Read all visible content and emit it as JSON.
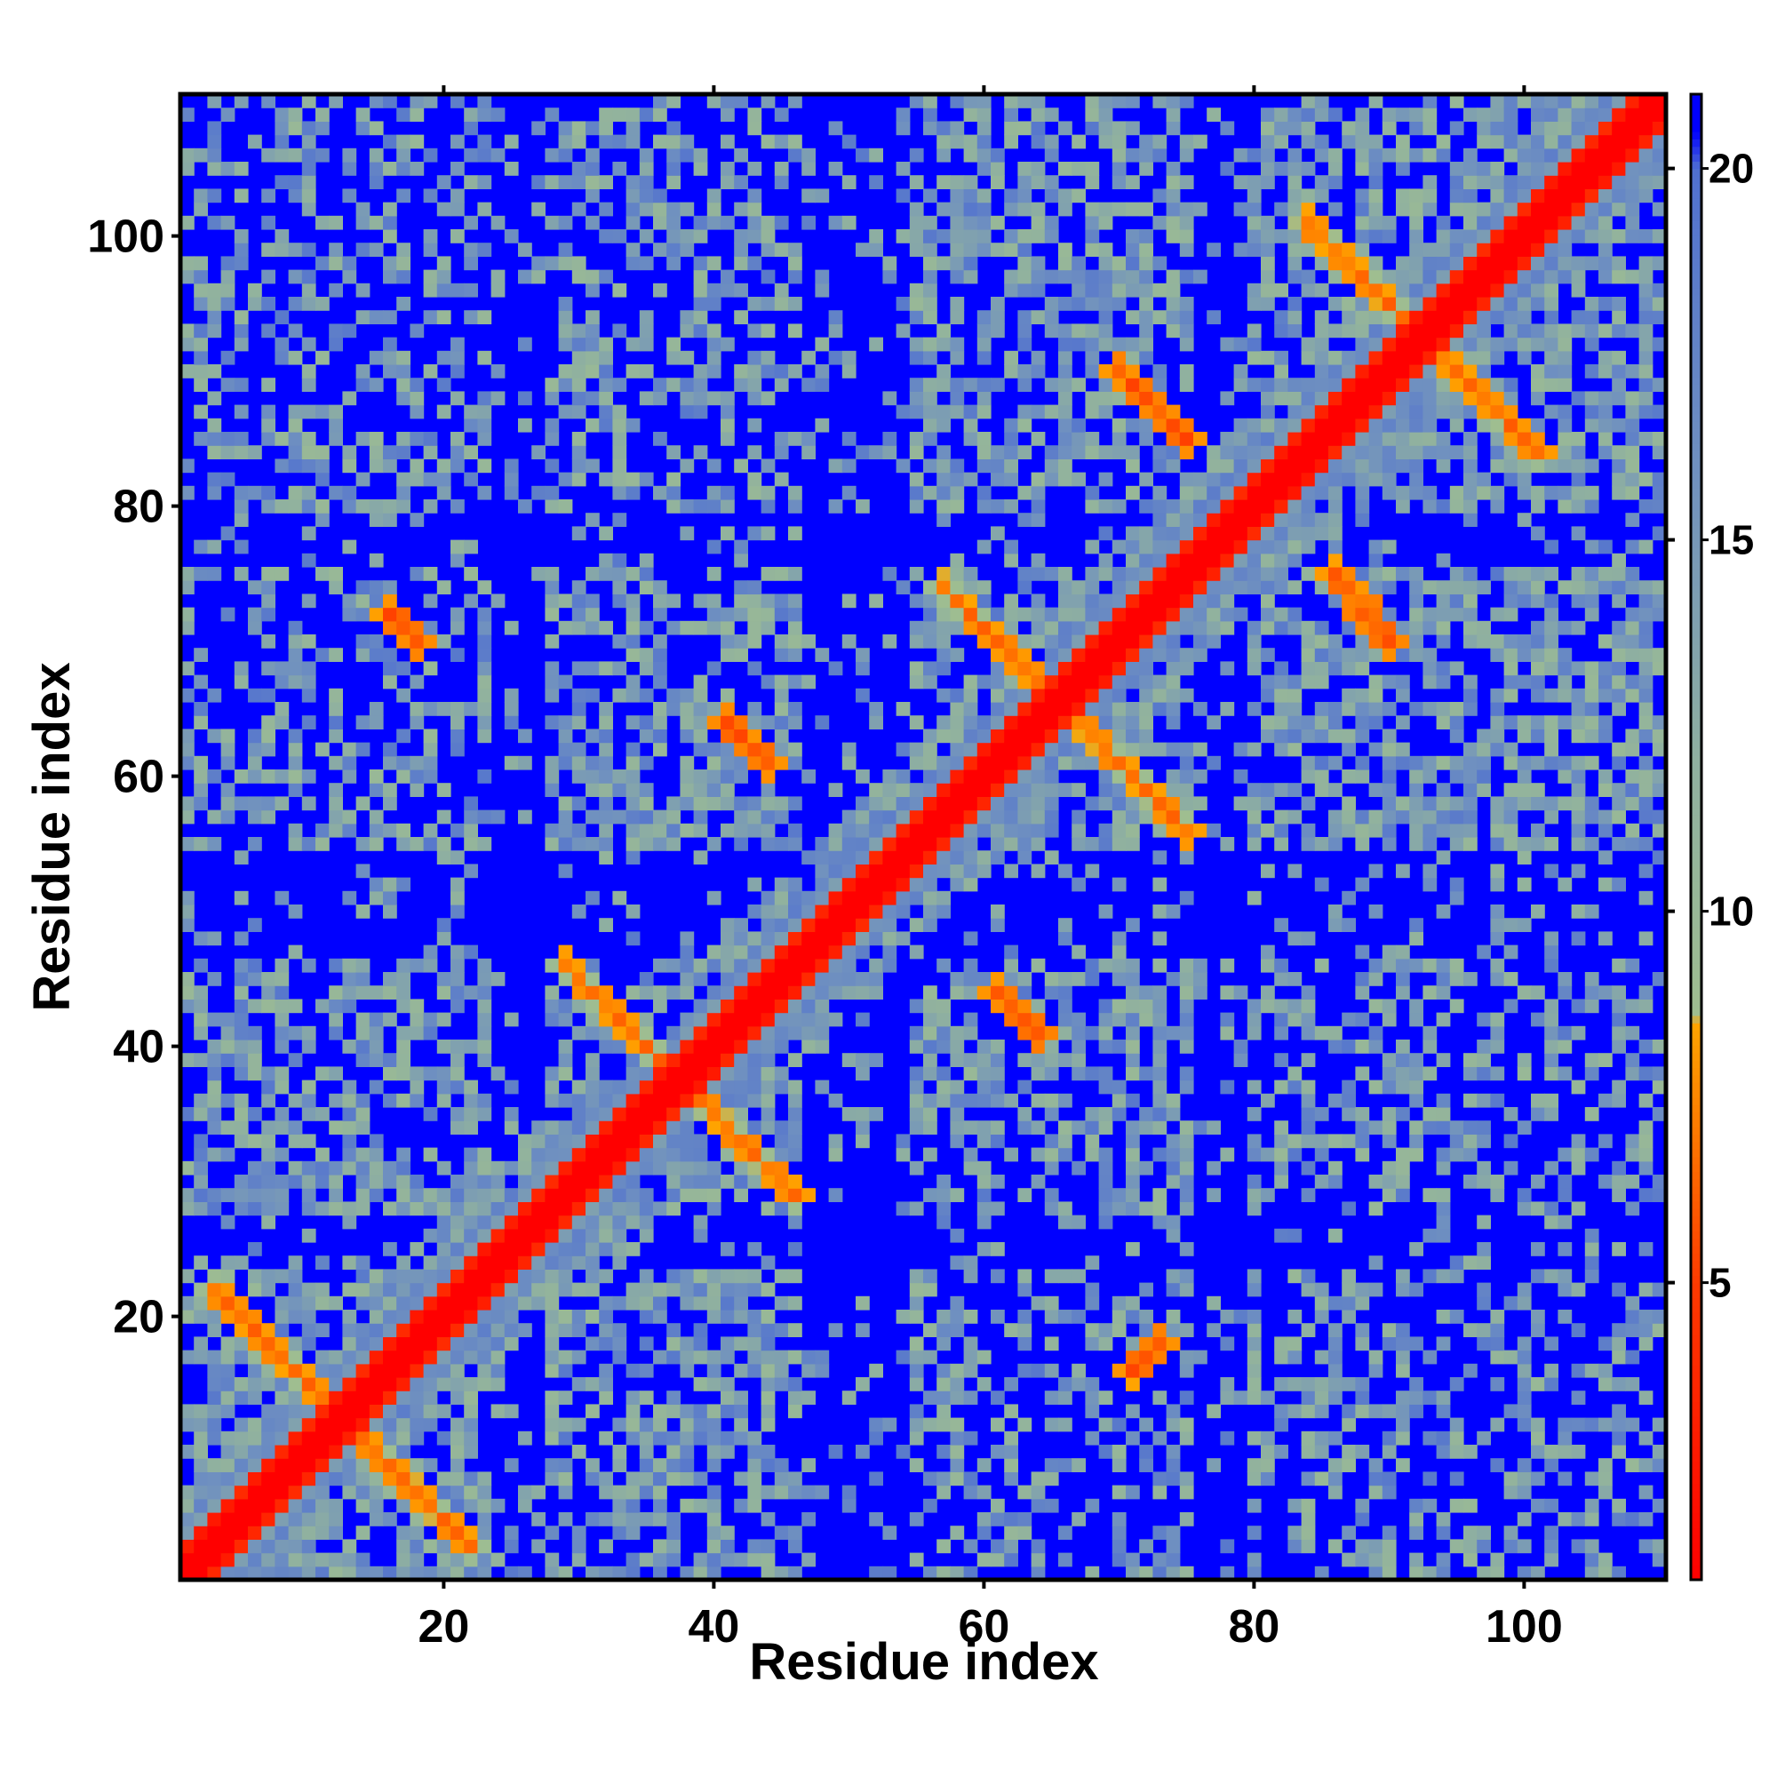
{
  "chart_data": {
    "type": "heatmap",
    "title": "",
    "xlabel": "Residue index",
    "ylabel": "Residue index",
    "xlim": [
      1,
      110
    ],
    "ylim": [
      1,
      110
    ],
    "x_ticks": [
      20,
      40,
      60,
      80,
      100
    ],
    "y_ticks": [
      20,
      40,
      60,
      80,
      100
    ],
    "colorbar": {
      "ticks": [
        5,
        10,
        15,
        20
      ],
      "range": [
        1,
        21
      ],
      "stops": [
        {
          "value": 1,
          "color": "#ff0000"
        },
        {
          "value": 5,
          "color": "#ff3a00"
        },
        {
          "value": 8.5,
          "color": "#ffa500"
        },
        {
          "value": 8.6,
          "color": "#9fbe90"
        },
        {
          "value": 12,
          "color": "#8fb0a0"
        },
        {
          "value": 16,
          "color": "#6f90c0"
        },
        {
          "value": 20,
          "color": "#5070d0"
        },
        {
          "value": 20.5,
          "color": "#0000ff"
        }
      ]
    },
    "background_value": 21,
    "n_residues": 110,
    "structure_model": {
      "diagonal_ridge_width": 1.1,
      "segments": [
        {
          "name": "h1",
          "start": 1,
          "end": 23
        },
        {
          "name": "h2",
          "start": 28,
          "end": 46
        },
        {
          "name": "h3",
          "start": 55,
          "end": 75
        },
        {
          "name": "h4",
          "start": 80,
          "end": 110
        }
      ],
      "cross_contacts": [
        {
          "i": 3,
          "j": 22,
          "i2": 22,
          "j2": 3,
          "value": 6
        },
        {
          "i": 29,
          "j": 46,
          "i2": 46,
          "j2": 29,
          "value": 6
        },
        {
          "i": 57,
          "j": 74,
          "i2": 75,
          "j2": 56,
          "value": 6
        },
        {
          "i": 84,
          "j": 101,
          "i2": 101,
          "j2": 84,
          "value": 6
        },
        {
          "i": 16,
          "j": 72,
          "i2": 18,
          "j2": 70,
          "value": 5
        },
        {
          "i": 71,
          "j": 16,
          "i2": 73,
          "j2": 18,
          "value": 5
        },
        {
          "i": 41,
          "j": 64,
          "i2": 44,
          "j2": 61,
          "value": 5
        },
        {
          "i": 61,
          "j": 44,
          "i2": 64,
          "j2": 41,
          "value": 5
        },
        {
          "i": 70,
          "j": 90,
          "i2": 75,
          "j2": 85,
          "value": 5
        },
        {
          "i": 86,
          "j": 75,
          "i2": 90,
          "j2": 70,
          "value": 5
        }
      ]
    }
  }
}
